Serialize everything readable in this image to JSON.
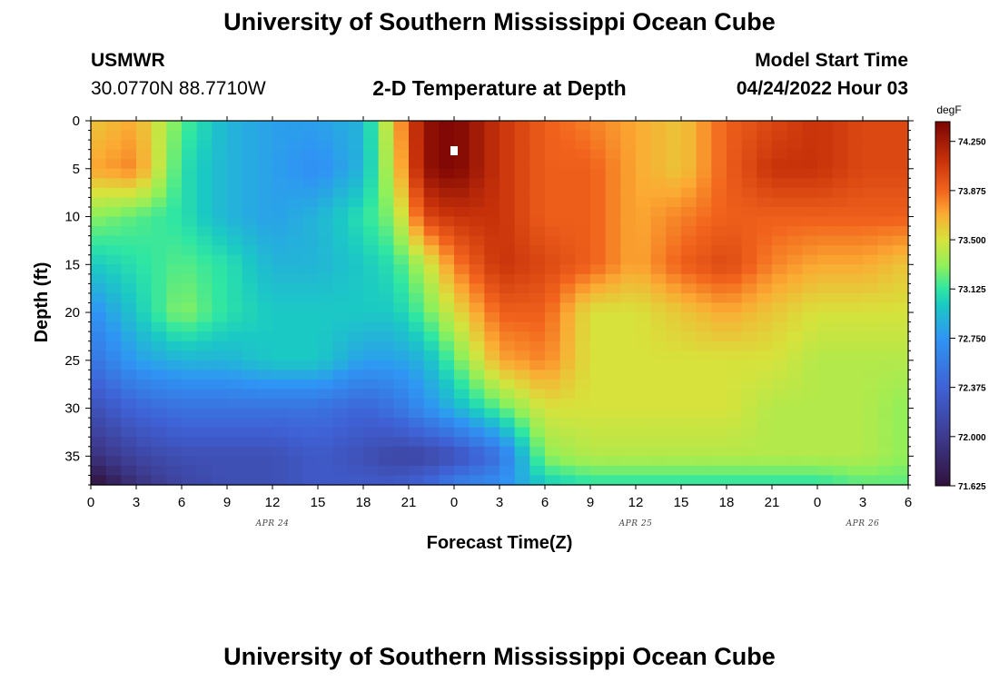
{
  "header": {
    "title": "University of Southern Mississippi Ocean Cube",
    "station": "USMWR",
    "coords": "30.0770N  88.7710W",
    "plot_title": "2-D Temperature at Depth",
    "start_label": "Model Start Time",
    "start_value": "04/24/2022 Hour 03"
  },
  "footer": {
    "title": "University of Southern Mississippi Ocean Cube"
  },
  "chart_data": {
    "type": "heatmap",
    "xlabel": "Forecast Time(Z)",
    "ylabel": "Depth (ft)",
    "x_ticks": [
      "0",
      "3",
      "6",
      "9",
      "12",
      "15",
      "18",
      "21",
      "0",
      "3",
      "6",
      "9",
      "12",
      "15",
      "18",
      "21",
      "0",
      "3",
      "6"
    ],
    "x_range_hours": [
      0,
      54
    ],
    "date_labels": [
      {
        "text": "APR 24",
        "hour": 12
      },
      {
        "text": "APR 25",
        "hour": 36
      },
      {
        "text": "APR 26",
        "hour": 51
      }
    ],
    "y_ticks": [
      0,
      5,
      10,
      15,
      20,
      25,
      30,
      35
    ],
    "ylim": [
      0,
      38
    ],
    "y_inverted": true,
    "colorbar": {
      "unit": "degF",
      "min": 71.625,
      "max": 74.4,
      "labels": [
        "74.250",
        "73.875",
        "73.500",
        "73.125",
        "72.750",
        "72.375",
        "72.000",
        "71.625"
      ]
    },
    "anchors_note_free": true,
    "anchor_hours": [
      0,
      3,
      6,
      9,
      12,
      15,
      18,
      20,
      22,
      24,
      27,
      30,
      33,
      36,
      39,
      42,
      45,
      48,
      51,
      54
    ],
    "anchor_depths": [
      0,
      5,
      10,
      15,
      20,
      25,
      30,
      35,
      38
    ],
    "values": [
      [
        73.6,
        73.7,
        73.2,
        72.9,
        72.8,
        72.8,
        72.9,
        73.6,
        74.3,
        74.4,
        74.1,
        73.9,
        73.8,
        73.7,
        73.6,
        73.9,
        74.0,
        74.1,
        74.0,
        74.0
      ],
      [
        73.7,
        73.8,
        73.1,
        72.9,
        72.8,
        72.7,
        72.9,
        73.5,
        74.3,
        74.4,
        74.1,
        73.9,
        73.9,
        73.7,
        73.6,
        73.9,
        74.1,
        74.1,
        74.0,
        74.0
      ],
      [
        73.3,
        73.2,
        73.1,
        72.9,
        72.8,
        72.9,
        73.1,
        73.3,
        74.0,
        74.1,
        74.1,
        73.9,
        73.9,
        73.7,
        73.8,
        73.9,
        73.9,
        73.9,
        73.9,
        73.9
      ],
      [
        73.0,
        73.1,
        73.2,
        73.1,
        72.9,
        72.9,
        73.0,
        73.1,
        73.4,
        73.8,
        74.1,
        74.0,
        73.9,
        73.7,
        73.9,
        74.0,
        73.8,
        73.7,
        73.7,
        73.6
      ],
      [
        72.7,
        73.0,
        73.3,
        73.1,
        73.0,
        73.0,
        73.0,
        73.0,
        73.2,
        73.5,
        73.9,
        73.9,
        73.5,
        73.5,
        73.6,
        73.7,
        73.6,
        73.5,
        73.5,
        73.5
      ],
      [
        72.5,
        72.8,
        72.9,
        72.9,
        73.0,
        73.0,
        72.8,
        72.8,
        72.9,
        73.2,
        73.7,
        73.8,
        73.5,
        73.5,
        73.5,
        73.5,
        73.5,
        73.4,
        73.4,
        73.4
      ],
      [
        72.2,
        72.4,
        72.5,
        72.5,
        72.5,
        72.5,
        72.4,
        72.5,
        72.7,
        72.9,
        73.2,
        73.5,
        73.5,
        73.5,
        73.5,
        73.5,
        73.4,
        73.4,
        73.4,
        73.3
      ],
      [
        71.9,
        72.1,
        72.2,
        72.2,
        72.2,
        72.3,
        72.2,
        72.1,
        72.1,
        72.2,
        72.5,
        73.3,
        73.4,
        73.4,
        73.4,
        73.4,
        73.4,
        73.4,
        73.4,
        73.3
      ],
      [
        71.6,
        71.9,
        72.1,
        72.2,
        72.2,
        72.3,
        72.3,
        72.3,
        72.4,
        72.6,
        72.7,
        73.0,
        73.1,
        73.1,
        73.1,
        73.1,
        73.1,
        73.1,
        73.2,
        73.2
      ]
    ],
    "colorscale": [
      {
        "v": 71.625,
        "c": "#30123b"
      },
      {
        "v": 72.0,
        "c": "#3e3b8f"
      },
      {
        "v": 72.375,
        "c": "#3f62d6"
      },
      {
        "v": 72.75,
        "c": "#2f95f4"
      },
      {
        "v": 73.0,
        "c": "#1bc9c4"
      },
      {
        "v": 73.125,
        "c": "#2fe6a3"
      },
      {
        "v": 73.3,
        "c": "#8ff05a"
      },
      {
        "v": 73.5,
        "c": "#d7e23c"
      },
      {
        "v": 73.7,
        "c": "#fbaa33"
      },
      {
        "v": 73.875,
        "c": "#f2641d"
      },
      {
        "v": 74.1,
        "c": "#c8320a"
      },
      {
        "v": 74.4,
        "c": "#7a0403"
      }
    ]
  }
}
